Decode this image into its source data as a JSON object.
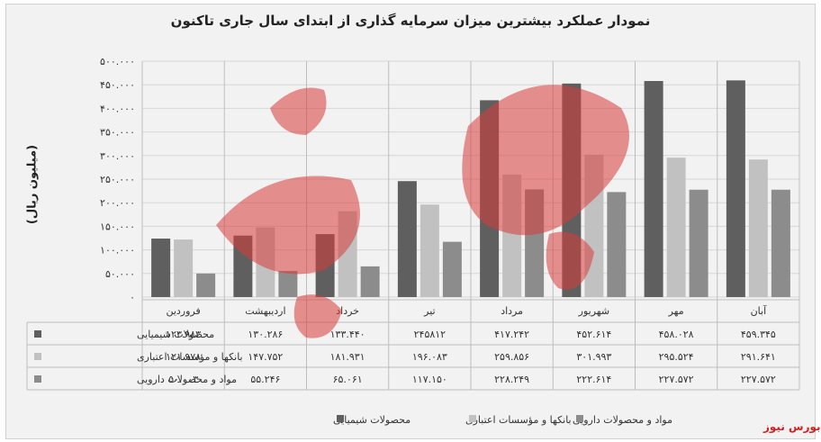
{
  "chart_data": {
    "type": "bar",
    "title": "نمودار عملکرد بیشترین میزان سرمایه گذاری از ابتدای سال جاری تاکنون",
    "ylabel": "(میلیون ریال)",
    "ylim": [
      0,
      500000
    ],
    "y_ticks": [
      "۵۰۰.۰۰۰",
      "۴۵۰.۰۰۰",
      "۴۰۰.۰۰۰",
      "۳۵۰.۰۰۰",
      "۳۰۰.۰۰۰",
      "۲۵۰.۰۰۰",
      "۲۰۰.۰۰۰",
      "۱۵۰.۰۰۰",
      "۱۰۰.۰۰۰",
      "۵۰.۰۰۰",
      "۰"
    ],
    "categories": [
      "فروردین",
      "اردیبهشت",
      "خرداد",
      "تیر",
      "مرداد",
      "شهریور",
      "مهر",
      "آبان"
    ],
    "series": [
      {
        "name": "محصولات شیمیایی",
        "color": "#5f5f5f",
        "values": [
          123983,
          130286,
          133440,
          245812,
          417242,
          452614,
          458028,
          459345
        ],
        "labels": [
          "۱۲۳.۹۸۳",
          "۱۳۰.۲۸۶",
          "۱۳۳.۴۴۰",
          "۲۴۵۸۱۲",
          "۴۱۷.۲۴۲",
          "۴۵۲.۶۱۴",
          "۴۵۸.۰۲۸",
          "۴۵۹.۳۴۵"
        ]
      },
      {
        "name": "بانکها و مؤسسات اعتباری",
        "color": "#c1c1c1",
        "values": [
          121978,
          147752,
          181931,
          196083,
          259856,
          301993,
          295524,
          291641
        ],
        "labels": [
          "۱۲۱.۹۷۸",
          "۱۴۷.۷۵۲",
          "۱۸۱.۹۳۱",
          "۱۹۶.۰۸۳",
          "۲۵۹.۸۵۶",
          "۳۰۱.۹۹۳",
          "۲۹۵.۵۲۴",
          "۲۹۱.۶۴۱"
        ]
      },
      {
        "name": "مواد و محصولات دارویی",
        "color": "#8c8c8c",
        "values": [
          50003,
          55246,
          65061,
          117150,
          228249,
          222614,
          227572,
          227572
        ],
        "labels": [
          "۵۰.۰۰۳",
          "۵۵.۲۴۶",
          "۶۵.۰۶۱",
          "۱۱۷.۱۵۰",
          "۲۲۸.۲۴۹",
          "۲۲۲.۶۱۴",
          "۲۲۷.۵۷۲",
          "۲۲۷.۵۷۲"
        ]
      }
    ],
    "grid": true,
    "legend": "bottom",
    "table_below": true
  },
  "watermark_text": "بورس نیوز",
  "brand_label": "بورس نیوز"
}
